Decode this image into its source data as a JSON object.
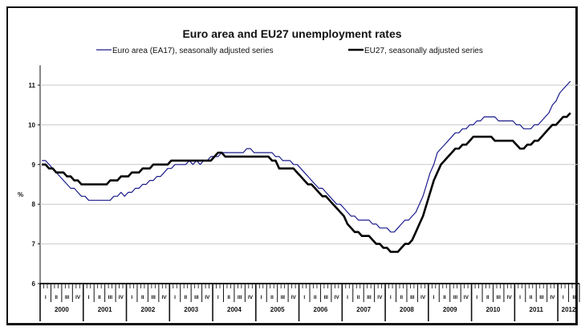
{
  "chart_data": {
    "type": "line",
    "title": "Euro area and EU27 unemployment rates",
    "ylabel": "%",
    "xlabel": "",
    "ylim": [
      6,
      11.5
    ],
    "yticks": [
      "6",
      "7",
      "8",
      "9",
      "10",
      "11"
    ],
    "ytick_values": [
      6,
      7,
      8,
      9,
      10,
      11
    ],
    "grid": true,
    "legend_position": "top",
    "x_start": "2000-01",
    "x_frequency": "monthly",
    "x_axis_months": 150,
    "years": [
      "2000",
      "2001",
      "2002",
      "2003",
      "2004",
      "2005",
      "2006",
      "2007",
      "2008",
      "2009",
      "2010",
      "2011",
      "2012"
    ],
    "quarters": [
      "I",
      "II",
      "III",
      "IV"
    ],
    "series": [
      {
        "name": "Euro area (EA17), seasonally adjusted series",
        "color": "#1a1a8c",
        "values": [
          9.1,
          9.1,
          9.0,
          8.9,
          8.8,
          8.7,
          8.6,
          8.5,
          8.4,
          8.4,
          8.3,
          8.2,
          8.2,
          8.1,
          8.1,
          8.1,
          8.1,
          8.1,
          8.1,
          8.1,
          8.2,
          8.2,
          8.3,
          8.2,
          8.3,
          8.3,
          8.4,
          8.4,
          8.5,
          8.5,
          8.6,
          8.6,
          8.7,
          8.7,
          8.8,
          8.9,
          8.9,
          9.0,
          9.0,
          9.0,
          9.0,
          9.1,
          9.0,
          9.1,
          9.0,
          9.1,
          9.1,
          9.2,
          9.2,
          9.2,
          9.3,
          9.3,
          9.3,
          9.3,
          9.3,
          9.3,
          9.3,
          9.4,
          9.4,
          9.3,
          9.3,
          9.3,
          9.3,
          9.3,
          9.3,
          9.2,
          9.2,
          9.1,
          9.1,
          9.1,
          9.0,
          9.0,
          8.9,
          8.8,
          8.7,
          8.6,
          8.5,
          8.4,
          8.4,
          8.3,
          8.2,
          8.1,
          8.0,
          8.0,
          7.9,
          7.8,
          7.7,
          7.7,
          7.6,
          7.6,
          7.6,
          7.6,
          7.5,
          7.5,
          7.4,
          7.4,
          7.4,
          7.3,
          7.3,
          7.4,
          7.5,
          7.6,
          7.6,
          7.7,
          7.8,
          8.0,
          8.2,
          8.5,
          8.8,
          9.0,
          9.3,
          9.4,
          9.5,
          9.6,
          9.7,
          9.8,
          9.8,
          9.9,
          9.9,
          10.0,
          10.0,
          10.1,
          10.1,
          10.2,
          10.2,
          10.2,
          10.2,
          10.1,
          10.1,
          10.1,
          10.1,
          10.1,
          10.0,
          10.0,
          9.9,
          9.9,
          9.9,
          10.0,
          10.0,
          10.1,
          10.2,
          10.3,
          10.5,
          10.6,
          10.8,
          10.9,
          11.0,
          11.1
        ]
      },
      {
        "name": "EU27, seasonally adjusted series",
        "color": "#000000",
        "values": [
          9.0,
          9.0,
          8.9,
          8.9,
          8.8,
          8.8,
          8.8,
          8.7,
          8.7,
          8.6,
          8.6,
          8.5,
          8.5,
          8.5,
          8.5,
          8.5,
          8.5,
          8.5,
          8.5,
          8.6,
          8.6,
          8.6,
          8.7,
          8.7,
          8.7,
          8.8,
          8.8,
          8.8,
          8.9,
          8.9,
          8.9,
          9.0,
          9.0,
          9.0,
          9.0,
          9.0,
          9.1,
          9.1,
          9.1,
          9.1,
          9.1,
          9.1,
          9.1,
          9.1,
          9.1,
          9.1,
          9.1,
          9.1,
          9.2,
          9.3,
          9.3,
          9.2,
          9.2,
          9.2,
          9.2,
          9.2,
          9.2,
          9.2,
          9.2,
          9.2,
          9.2,
          9.2,
          9.2,
          9.2,
          9.1,
          9.1,
          8.9,
          8.9,
          8.9,
          8.9,
          8.9,
          8.8,
          8.7,
          8.6,
          8.5,
          8.5,
          8.4,
          8.3,
          8.2,
          8.2,
          8.1,
          8.0,
          7.9,
          7.8,
          7.7,
          7.5,
          7.4,
          7.3,
          7.3,
          7.2,
          7.2,
          7.2,
          7.1,
          7.0,
          7.0,
          6.9,
          6.9,
          6.8,
          6.8,
          6.8,
          6.9,
          7.0,
          7.0,
          7.1,
          7.3,
          7.5,
          7.7,
          8.0,
          8.3,
          8.6,
          8.8,
          9.0,
          9.1,
          9.2,
          9.3,
          9.4,
          9.4,
          9.5,
          9.5,
          9.6,
          9.7,
          9.7,
          9.7,
          9.7,
          9.7,
          9.7,
          9.6,
          9.6,
          9.6,
          9.6,
          9.6,
          9.6,
          9.5,
          9.4,
          9.4,
          9.5,
          9.5,
          9.6,
          9.6,
          9.7,
          9.8,
          9.9,
          10.0,
          10.0,
          10.1,
          10.2,
          10.2,
          10.3
        ]
      }
    ]
  }
}
